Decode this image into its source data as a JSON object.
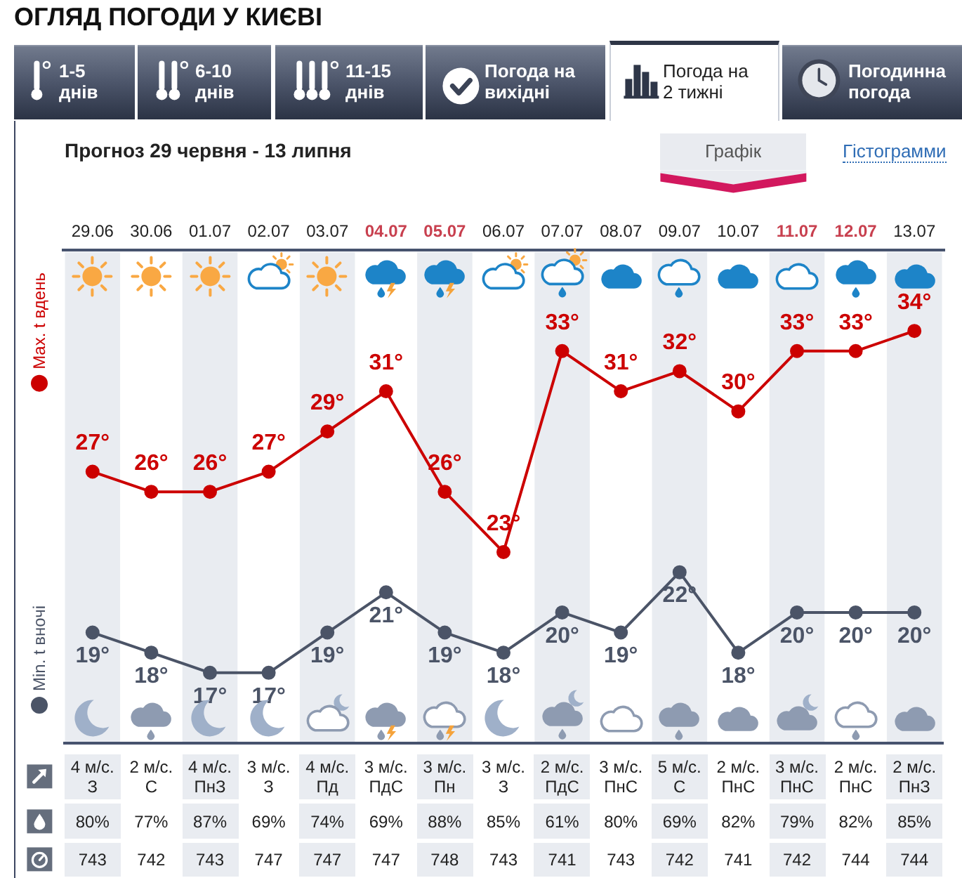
{
  "chart_data": [
    {
      "type": "other",
      "title": "ОГЛЯД ПОГОДИ У КИЄВІ",
      "annotations": [
        "1-5\nднів",
        "6-10\nднів",
        "11-15\nднів",
        "Погода на\nвихідні",
        "Погода на\n2 тижні",
        "Погодинна\nпогода"
      ]
    },
    {
      "type": "line",
      "title": "Прогноз 29 червня - 13 липня",
      "annotations": [
        "Графік",
        "Гістограмми",
        "4 м/с.\nЗ",
        "2 м/с.\nС",
        "4 м/с.\nПнЗ",
        "3 м/с.\nЗ",
        "4 м/с.\nПд",
        "3 м/с.\nПдС",
        "3 м/с.\nПн",
        "3 м/с.\nЗ",
        "2 м/с.\nПдС",
        "3 м/с.\nПнС",
        "5 м/с.\nС",
        "2 м/с.\nПнС",
        "3 м/с.\nПнС",
        "2 м/с.\nПнС",
        "2 м/с.\nПнЗ",
        "80%",
        "77%",
        "87%",
        "69%",
        "74%",
        "69%",
        "88%",
        "85%",
        "61%",
        "80%",
        "69%",
        "82%",
        "79%",
        "82%",
        "85%",
        "743",
        "742",
        "743",
        "747",
        "747",
        "747",
        "748",
        "743",
        "741",
        "743",
        "742",
        "741",
        "742",
        "744",
        "744"
      ],
      "categories": [
        "29.06",
        "30.06",
        "01.07",
        "02.07",
        "03.07",
        "04.07",
        "05.07",
        "06.07",
        "07.07",
        "08.07",
        "09.07",
        "10.07",
        "11.07",
        "12.07",
        "13.07"
      ],
      "series": [
        {
          "name": "Max. t вдень",
          "color": "#cc0000",
          "values": [
            27,
            26,
            26,
            27,
            29,
            31,
            26,
            23,
            33,
            31,
            32,
            30,
            33,
            33,
            34
          ],
          "value_labels": [
            "27°",
            "26°",
            "26°",
            "27°",
            "29°",
            "31°",
            "26°",
            "23°",
            "33°",
            "31°",
            "32°",
            "30°",
            "33°",
            "33°",
            "34°"
          ]
        },
        {
          "name": "Min. t вночі",
          "color": "#4b5467",
          "values": [
            19,
            18,
            17,
            17,
            19,
            21,
            19,
            18,
            20,
            19,
            22,
            18,
            20,
            20,
            20
          ],
          "value_labels": [
            "19°",
            "18°",
            "17°",
            "17°",
            "19°",
            "21°",
            "19°",
            "18°",
            "20°",
            "19°",
            "22°",
            "18°",
            "20°",
            "20°",
            "20°"
          ]
        }
      ],
      "legend": "left",
      "marker": "circle",
      "bands": [
        {
          "axis": "x",
          "from": "29.06",
          "to": "29.06",
          "color": "#e9ecf1"
        },
        {
          "axis": "x",
          "from": "01.07",
          "to": "01.07",
          "color": "#e9ecf1"
        },
        {
          "axis": "x",
          "from": "03.07",
          "to": "03.07",
          "color": "#e9ecf1"
        },
        {
          "axis": "x",
          "from": "05.07",
          "to": "05.07",
          "color": "#e9ecf1"
        },
        {
          "axis": "x",
          "from": "07.07",
          "to": "07.07",
          "color": "#e9ecf1"
        },
        {
          "axis": "x",
          "from": "09.07",
          "to": "09.07",
          "color": "#e9ecf1"
        },
        {
          "axis": "x",
          "from": "11.07",
          "to": "11.07",
          "color": "#e9ecf1"
        },
        {
          "axis": "x",
          "from": "13.07",
          "to": "13.07",
          "color": "#e9ecf1"
        }
      ]
    }
  ]
}
